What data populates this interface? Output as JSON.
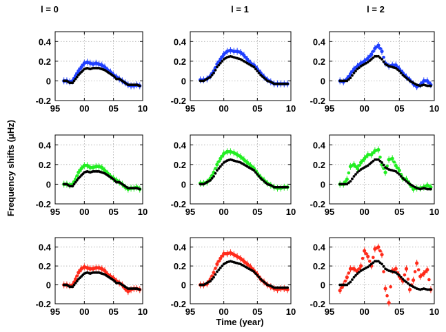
{
  "figure": {
    "column_titles": [
      "l = 0",
      "l = 1",
      "l = 2"
    ],
    "xlabel": "Time (year)",
    "ylabel": "Frequency shifts (μHz)",
    "xtick_labels": [
      "95",
      "00",
      "05",
      "10"
    ],
    "ytick_labels": [
      "-0.2",
      "0",
      "0.2",
      "0.4"
    ]
  },
  "colors": {
    "row1": "#1f3fff",
    "row2": "#22ee22",
    "row3": "#ff2a1a",
    "reference": "#000000",
    "grid": "#9a9a9a"
  },
  "chart_data": {
    "type": "scatter",
    "layout": "3x3 small multiples",
    "xlabel": "Time (year)",
    "ylabel": "Frequency shifts (μHz)",
    "xlim": [
      1995,
      2010
    ],
    "ylim": [
      -0.2,
      0.5
    ],
    "xticks": [
      1995,
      2000,
      2005,
      2010
    ],
    "yticks": [
      -0.2,
      0,
      0.2,
      0.4
    ],
    "grid": true,
    "rows": [
      "blue",
      "green",
      "red"
    ],
    "columns": [
      "l = 0",
      "l = 1",
      "l = 2"
    ],
    "x": [
      1996.5,
      1997.0,
      1997.5,
      1998.0,
      1998.5,
      1999.0,
      1999.5,
      2000.0,
      2000.5,
      2001.0,
      2001.5,
      2002.0,
      2002.5,
      2003.0,
      2003.5,
      2004.0,
      2004.5,
      2005.0,
      2005.5,
      2006.0,
      2006.5,
      2007.0,
      2007.5,
      2008.0,
      2008.5,
      2009.0,
      2009.5
    ],
    "reference": {
      "l0": [
        0.0,
        0.0,
        -0.02,
        -0.02,
        0.02,
        0.06,
        0.09,
        0.12,
        0.13,
        0.12,
        0.13,
        0.13,
        0.13,
        0.12,
        0.11,
        0.09,
        0.07,
        0.05,
        0.02,
        0.02,
        0.0,
        -0.02,
        -0.04,
        -0.04,
        -0.04,
        -0.04,
        -0.05
      ],
      "l1": [
        0.0,
        0.0,
        0.02,
        0.04,
        0.08,
        0.14,
        0.18,
        0.22,
        0.24,
        0.25,
        0.24,
        0.23,
        0.22,
        0.2,
        0.18,
        0.16,
        0.14,
        0.1,
        0.06,
        0.03,
        0.0,
        -0.01,
        -0.03,
        -0.03,
        -0.03,
        -0.03,
        -0.03
      ],
      "l2": [
        0.0,
        0.0,
        0.0,
        0.03,
        0.08,
        0.12,
        0.15,
        0.17,
        0.19,
        0.22,
        0.25,
        0.25,
        0.22,
        0.17,
        0.15,
        0.14,
        0.13,
        0.1,
        0.06,
        0.03,
        0.0,
        -0.02,
        -0.04,
        -0.05,
        -0.04,
        -0.05,
        -0.05
      ]
    },
    "series": [
      {
        "name": "blue l=0",
        "row": 0,
        "col": 0,
        "values": [
          0.0,
          0.0,
          -0.01,
          0.0,
          0.05,
          0.1,
          0.14,
          0.18,
          0.19,
          0.18,
          0.17,
          0.18,
          0.17,
          0.16,
          0.14,
          0.11,
          0.09,
          0.06,
          0.04,
          0.02,
          0.0,
          -0.02,
          -0.04,
          -0.05,
          -0.05,
          -0.04,
          -0.05
        ]
      },
      {
        "name": "blue l=1",
        "row": 0,
        "col": 1,
        "values": [
          0.01,
          0.01,
          0.02,
          0.05,
          0.1,
          0.17,
          0.22,
          0.27,
          0.3,
          0.31,
          0.3,
          0.3,
          0.29,
          0.26,
          0.22,
          0.18,
          0.16,
          0.12,
          0.08,
          0.04,
          0.01,
          -0.01,
          -0.03,
          -0.03,
          -0.03,
          -0.03,
          -0.03
        ]
      },
      {
        "name": "blue l=2",
        "row": 0,
        "col": 2,
        "values": [
          0.0,
          -0.01,
          0.02,
          0.07,
          0.12,
          0.15,
          0.18,
          0.2,
          0.23,
          0.27,
          0.33,
          0.36,
          0.3,
          0.18,
          0.15,
          0.16,
          0.16,
          0.12,
          0.08,
          0.04,
          0.01,
          -0.03,
          -0.06,
          -0.04,
          0.0,
          0.0,
          -0.04
        ]
      },
      {
        "name": "green l=0",
        "row": 1,
        "col": 0,
        "values": [
          0.0,
          0.0,
          -0.01,
          0.0,
          0.05,
          0.12,
          0.16,
          0.19,
          0.19,
          0.17,
          0.17,
          0.18,
          0.18,
          0.17,
          0.14,
          0.11,
          0.08,
          0.06,
          0.04,
          0.02,
          0.0,
          -0.03,
          -0.05,
          -0.04,
          -0.04,
          -0.03,
          -0.05
        ]
      },
      {
        "name": "green l=1",
        "row": 1,
        "col": 1,
        "values": [
          0.01,
          0.01,
          0.02,
          0.06,
          0.12,
          0.2,
          0.26,
          0.31,
          0.33,
          0.33,
          0.32,
          0.3,
          0.28,
          0.25,
          0.22,
          0.19,
          0.16,
          0.11,
          0.07,
          0.04,
          0.01,
          -0.01,
          -0.03,
          -0.04,
          -0.04,
          -0.03,
          -0.03
        ]
      },
      {
        "name": "green l=2",
        "row": 1,
        "col": 2,
        "values": [
          0.0,
          0.0,
          0.05,
          0.18,
          0.2,
          0.16,
          0.22,
          0.26,
          0.3,
          0.3,
          0.34,
          0.35,
          0.2,
          0.12,
          0.25,
          0.26,
          0.19,
          0.14,
          0.06,
          0.05,
          0.0,
          -0.05,
          -0.04,
          -0.04,
          -0.03,
          -0.01,
          -0.03
        ]
      },
      {
        "name": "red l=0",
        "row": 2,
        "col": 0,
        "values": [
          0.0,
          0.0,
          -0.01,
          0.0,
          0.06,
          0.13,
          0.17,
          0.19,
          0.18,
          0.17,
          0.17,
          0.18,
          0.18,
          0.17,
          0.15,
          0.11,
          0.09,
          0.07,
          0.04,
          0.02,
          0.0,
          -0.04,
          -0.07,
          -0.05,
          -0.04,
          -0.04,
          -0.05
        ]
      },
      {
        "name": "red l=1",
        "row": 2,
        "col": 1,
        "values": [
          0.0,
          0.0,
          0.01,
          0.06,
          0.13,
          0.22,
          0.28,
          0.33,
          0.33,
          0.34,
          0.32,
          0.3,
          0.28,
          0.25,
          0.22,
          0.19,
          0.15,
          0.11,
          0.06,
          0.03,
          0.0,
          -0.02,
          -0.04,
          -0.05,
          -0.04,
          -0.04,
          -0.05
        ]
      },
      {
        "name": "red l=2",
        "row": 2,
        "col": 2,
        "values": [
          -0.06,
          0.0,
          0.08,
          0.17,
          0.17,
          0.14,
          0.2,
          0.36,
          0.3,
          0.2,
          0.38,
          0.4,
          0.32,
          -0.04,
          -0.19,
          0.15,
          0.17,
          0.09,
          0.04,
          0.17,
          -0.05,
          0.05,
          0.23,
          0.09,
          0.12,
          0.16,
          -0.05
        ]
      }
    ]
  }
}
